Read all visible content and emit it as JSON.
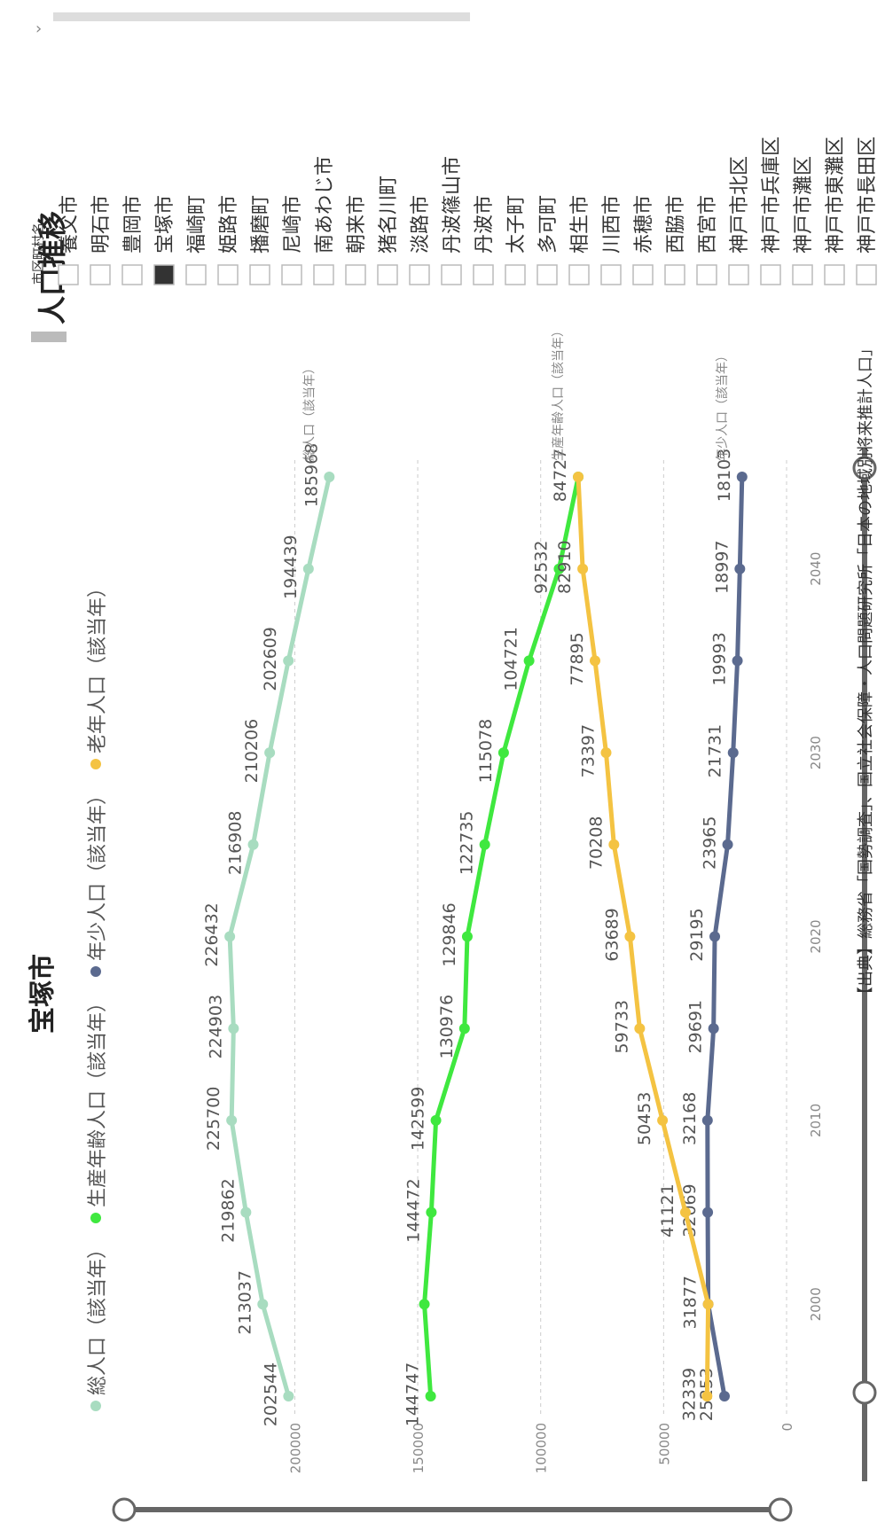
{
  "page": {
    "title": "人口推移",
    "chart_title": "宝塚市",
    "source": "【出典】総務省「国勢調査」、国立社会保障・人口問題研究所「日本の地域別将来推計人口」",
    "expand_icon_label": "›"
  },
  "slicer": {
    "header": "市区町村名",
    "selected": "宝塚市",
    "items": [
      "養父市",
      "明石市",
      "豊岡市",
      "宝塚市",
      "福崎町",
      "姫路市",
      "播磨町",
      "尼崎市",
      "南あわじ市",
      "朝来市",
      "猪名川町",
      "淡路市",
      "丹波篠山市",
      "丹波市",
      "太子町",
      "多可町",
      "相生市",
      "川西市",
      "赤穂市",
      "西脇市",
      "西宮市",
      "神戸市北区",
      "神戸市兵庫区",
      "神戸市灘区",
      "神戸市東灘区",
      "神戸市長田区"
    ]
  },
  "chart_data": {
    "type": "line",
    "title": "宝塚市",
    "x": [
      1995,
      2000,
      2005,
      2010,
      2015,
      2020,
      2025,
      2030,
      2035,
      2040,
      2045
    ],
    "xticks": [
      2000,
      2010,
      2020,
      2030,
      2040
    ],
    "yticks": [
      0,
      50000,
      100000,
      150000,
      200000
    ],
    "legend_position": "top",
    "series": [
      {
        "name": "総人口（該当年）",
        "color": "#a8dcc0",
        "end_label": "総人口（該当年）",
        "values": [
          202544,
          213037,
          219862,
          225700,
          224903,
          226432,
          216908,
          210206,
          202609,
          194439,
          185968
        ]
      },
      {
        "name": "生産年齢人口（該当年）",
        "color": "#3fe83f",
        "end_label": "生産年齢人口（該当年）",
        "values": [
          144747,
          147300,
          144472,
          142599,
          130976,
          129846,
          122735,
          115078,
          104721,
          92532,
          84727
        ]
      },
      {
        "name": "年少人口（該当年）",
        "color": "#5b6a8f",
        "end_label": "年少人口（該当年）",
        "values": [
          25253,
          31877,
          32069,
          32168,
          29691,
          29195,
          23965,
          21731,
          19993,
          18997,
          18103
        ]
      },
      {
        "name": "老年人口（該当年）",
        "color": "#f4c342",
        "end_label": "",
        "values": [
          32339,
          31877,
          41121,
          50453,
          59733,
          63689,
          70208,
          73397,
          77895,
          82910,
          84727
        ]
      }
    ],
    "point_labels": {
      "総人口（該当年）": [
        "202544",
        "213037",
        "219862",
        "225700",
        "224903",
        "226432",
        "216908",
        "210206",
        "202609",
        "194439",
        "185968"
      ],
      "生産年齢人口（該当年）": [
        "144747",
        "",
        "144472",
        "142599",
        "130976",
        "129846",
        "122735",
        "115078",
        "104721",
        "92532",
        "84727"
      ],
      "年少人口（該当年）": [
        "25253",
        "31877",
        "32069",
        "32168",
        "29691",
        "29195",
        "23965",
        "21731",
        "19993",
        "18997",
        "18103"
      ],
      "老年人口（該当年）": [
        "32339",
        "",
        "41121",
        "50453",
        "59733",
        "63689",
        "70208",
        "73397",
        "77895",
        "82910",
        ""
      ]
    }
  }
}
